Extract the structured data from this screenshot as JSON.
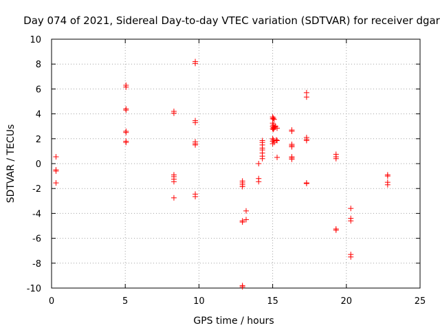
{
  "chart_data": {
    "type": "scatter",
    "title": "Day 074 of 2021, Sidereal Day-to-day VTEC variation (SDTVAR) for receiver dgar",
    "xlabel": "GPS time / hours",
    "ylabel": "SDTVAR / TECUs",
    "xlim": [
      0,
      25
    ],
    "ylim": [
      -10,
      10
    ],
    "xticks": [
      0,
      5,
      10,
      15,
      20,
      25
    ],
    "yticks": [
      -10,
      -8,
      -6,
      -4,
      -2,
      0,
      2,
      4,
      6,
      8,
      10
    ],
    "grid": true,
    "marker": "+",
    "series": [
      {
        "name": "SDTVAR",
        "color": "#ff0000",
        "points": [
          [
            0.3,
            0.55
          ],
          [
            0.3,
            -0.5
          ],
          [
            0.3,
            -0.6
          ],
          [
            0.3,
            -1.55
          ],
          [
            5.05,
            6.3
          ],
          [
            5.05,
            6.15
          ],
          [
            5.05,
            4.4
          ],
          [
            5.05,
            4.3
          ],
          [
            5.05,
            2.6
          ],
          [
            5.05,
            2.5
          ],
          [
            5.05,
            1.8
          ],
          [
            5.05,
            1.7
          ],
          [
            8.3,
            4.2
          ],
          [
            8.3,
            4.05
          ],
          [
            8.3,
            -0.9
          ],
          [
            8.3,
            -1.05
          ],
          [
            8.3,
            -1.25
          ],
          [
            8.3,
            -1.45
          ],
          [
            8.3,
            -2.75
          ],
          [
            9.75,
            8.2
          ],
          [
            9.75,
            8.05
          ],
          [
            9.75,
            3.45
          ],
          [
            9.75,
            3.3
          ],
          [
            9.75,
            1.75
          ],
          [
            9.75,
            1.6
          ],
          [
            9.75,
            1.5
          ],
          [
            9.75,
            -2.45
          ],
          [
            9.75,
            -2.65
          ],
          [
            12.95,
            -1.4
          ],
          [
            12.95,
            -1.55
          ],
          [
            12.95,
            -1.7
          ],
          [
            12.95,
            -1.85
          ],
          [
            12.95,
            -4.6
          ],
          [
            12.95,
            -4.7
          ],
          [
            12.95,
            -9.8
          ],
          [
            12.95,
            -9.9
          ],
          [
            13.2,
            -3.8
          ],
          [
            13.2,
            -4.5
          ],
          [
            14.05,
            0.0
          ],
          [
            14.05,
            -1.2
          ],
          [
            14.05,
            -1.45
          ],
          [
            14.3,
            1.85
          ],
          [
            14.3,
            1.7
          ],
          [
            14.3,
            1.5
          ],
          [
            14.3,
            1.25
          ],
          [
            14.3,
            1.1
          ],
          [
            14.3,
            0.85
          ],
          [
            14.3,
            0.6
          ],
          [
            14.3,
            0.4
          ],
          [
            15.0,
            3.75
          ],
          [
            15.0,
            3.6
          ],
          [
            15.05,
            3.65
          ],
          [
            15.1,
            3.55
          ],
          [
            15.0,
            3.25
          ],
          [
            15.05,
            3.1
          ],
          [
            15.0,
            3.0
          ],
          [
            15.05,
            2.9
          ],
          [
            15.1,
            2.85
          ],
          [
            15.0,
            2.8
          ],
          [
            15.05,
            2.75
          ],
          [
            15.15,
            2.95
          ],
          [
            15.2,
            3.0
          ],
          [
            15.3,
            2.85
          ],
          [
            15.0,
            2.0
          ],
          [
            15.05,
            1.9
          ],
          [
            15.0,
            1.8
          ],
          [
            15.1,
            1.7
          ],
          [
            15.0,
            1.6
          ],
          [
            15.25,
            1.9
          ],
          [
            15.3,
            1.85
          ],
          [
            15.3,
            0.5
          ],
          [
            16.3,
            2.7
          ],
          [
            16.3,
            2.6
          ],
          [
            16.3,
            1.55
          ],
          [
            16.3,
            1.45
          ],
          [
            16.3,
            1.35
          ],
          [
            16.3,
            0.55
          ],
          [
            16.3,
            0.45
          ],
          [
            16.3,
            0.35
          ],
          [
            17.3,
            5.7
          ],
          [
            17.3,
            5.35
          ],
          [
            17.3,
            2.1
          ],
          [
            17.3,
            1.95
          ],
          [
            17.3,
            1.85
          ],
          [
            17.3,
            -1.55
          ],
          [
            17.3,
            -1.6
          ],
          [
            19.3,
            0.75
          ],
          [
            19.3,
            0.55
          ],
          [
            19.3,
            0.4
          ],
          [
            19.3,
            -5.25
          ],
          [
            19.3,
            -5.35
          ],
          [
            20.3,
            -3.6
          ],
          [
            20.3,
            -4.4
          ],
          [
            20.3,
            -4.6
          ],
          [
            20.3,
            -7.3
          ],
          [
            20.3,
            -7.5
          ],
          [
            22.8,
            -0.9
          ],
          [
            22.8,
            -1.0
          ],
          [
            22.8,
            -1.5
          ],
          [
            22.8,
            -1.7
          ]
        ]
      }
    ]
  }
}
